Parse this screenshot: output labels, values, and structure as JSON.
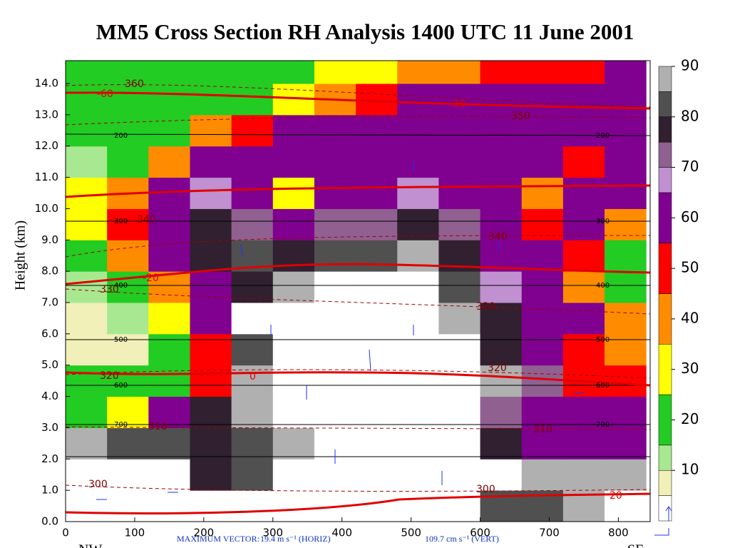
{
  "chart_data": {
    "type": "contour",
    "title": "MM5 Cross Section RH Analysis 1400 UTC 11 June 2001",
    "ylabel": "Height (km)",
    "xlim": [
      0,
      846
    ],
    "ylim": [
      0,
      14.73
    ],
    "xticks": [
      0,
      100,
      200,
      300,
      400,
      500,
      600,
      700,
      800
    ],
    "yticks": [
      {
        "value": 0,
        "label": "0.0"
      },
      {
        "value": 1,
        "label": "1.0"
      },
      {
        "value": 2,
        "label": "2.0"
      },
      {
        "value": 3,
        "label": "3.0"
      },
      {
        "value": 4,
        "label": "4.0"
      },
      {
        "value": 5,
        "label": "5.0"
      },
      {
        "value": 6,
        "label": "6.0"
      },
      {
        "value": 7,
        "label": "7.0"
      },
      {
        "value": 8,
        "label": "8.0"
      },
      {
        "value": 9,
        "label": "9.0"
      },
      {
        "value": 10,
        "label": "10.0"
      },
      {
        "value": 11,
        "label": "11.0"
      },
      {
        "value": 12,
        "label": "12.0"
      },
      {
        "value": 13,
        "label": "13.0"
      },
      {
        "value": 14,
        "label": "14.0"
      }
    ],
    "levels": [
      0,
      5,
      10,
      15,
      25,
      35,
      45,
      55,
      65,
      70,
      75,
      80,
      85,
      90
    ],
    "colors": [
      "#ffffff",
      "#f0f0b8",
      "#a8e890",
      "#22cc22",
      "#ffff00",
      "#ff8c00",
      "#ff0000",
      "#800090",
      "#c090d0",
      "#906090",
      "#302030",
      "#505050",
      "#b0b0b0",
      "#ffffff"
    ],
    "clim": [
      0,
      90
    ],
    "cticks": [
      10,
      20,
      30,
      40,
      50,
      60,
      70,
      80,
      90
    ],
    "x": [
      30,
      90,
      150,
      210,
      270,
      330,
      390,
      450,
      510,
      570,
      630,
      690,
      750,
      810
    ],
    "y": [
      0.5,
      1.5,
      2.5,
      3.5,
      4.5,
      5.5,
      6.5,
      7.5,
      8.5,
      9.5,
      10.5,
      11.5,
      12.5,
      13.5,
      14.5
    ],
    "rh": [
      [
        95,
        95,
        95,
        95,
        95,
        95,
        95,
        95,
        95,
        92,
        80,
        82,
        88,
        92
      ],
      [
        95,
        95,
        93,
        78,
        80,
        95,
        95,
        95,
        95,
        95,
        92,
        88,
        86,
        85
      ],
      [
        86,
        84,
        80,
        77,
        80,
        86,
        95,
        95,
        95,
        95,
        78,
        62,
        60,
        62
      ],
      [
        20,
        30,
        55,
        75,
        88,
        95,
        95,
        95,
        95,
        95,
        72,
        60,
        58,
        58
      ],
      [
        15,
        15,
        20,
        50,
        85,
        95,
        95,
        95,
        95,
        95,
        86,
        70,
        50,
        45
      ],
      [
        8,
        8,
        20,
        45,
        82,
        95,
        95,
        95,
        95,
        90,
        78,
        62,
        50,
        35
      ],
      [
        8,
        10,
        25,
        55,
        90,
        95,
        95,
        95,
        95,
        85,
        75,
        60,
        55,
        35
      ],
      [
        12,
        15,
        35,
        60,
        78,
        88,
        92,
        95,
        92,
        82,
        68,
        58,
        40,
        20
      ],
      [
        20,
        40,
        60,
        78,
        80,
        78,
        80,
        84,
        88,
        76,
        62,
        58,
        45,
        15
      ],
      [
        25,
        45,
        62,
        77,
        72,
        55,
        70,
        74,
        78,
        70,
        60,
        48,
        55,
        40
      ],
      [
        25,
        35,
        58,
        66,
        62,
        30,
        55,
        62,
        66,
        63,
        58,
        42,
        55,
        58
      ],
      [
        10,
        15,
        40,
        55,
        58,
        58,
        55,
        58,
        60,
        58,
        58,
        55,
        50,
        58
      ],
      [
        15,
        15,
        22,
        35,
        50,
        58,
        60,
        60,
        60,
        60,
        60,
        58,
        58,
        60
      ],
      [
        18,
        18,
        15,
        18,
        20,
        25,
        35,
        45,
        55,
        55,
        58,
        58,
        55,
        58
      ],
      [
        20,
        20,
        18,
        18,
        20,
        20,
        25,
        30,
        35,
        40,
        48,
        50,
        50,
        55
      ]
    ],
    "vector_label": "MAXIMUM VECTOR:",
    "vector_horiz": "19.4 m s⁻¹ (HORIZ)",
    "vector_vert": "109.7 cm s⁻¹ (VERT)",
    "left_end": "NW",
    "right_end": "SE",
    "pressure_labels": [
      "200",
      "300",
      "400",
      "500",
      "600",
      "700",
      "200",
      "300",
      "400",
      "500",
      "600",
      "700"
    ],
    "theta_labels": [
      "360",
      "350",
      "340",
      "330",
      "320",
      "310",
      "300",
      "340",
      "330",
      "320",
      "310",
      "300"
    ],
    "temp_labels": [
      "-60",
      "-30",
      "-20",
      "0",
      "20"
    ]
  }
}
